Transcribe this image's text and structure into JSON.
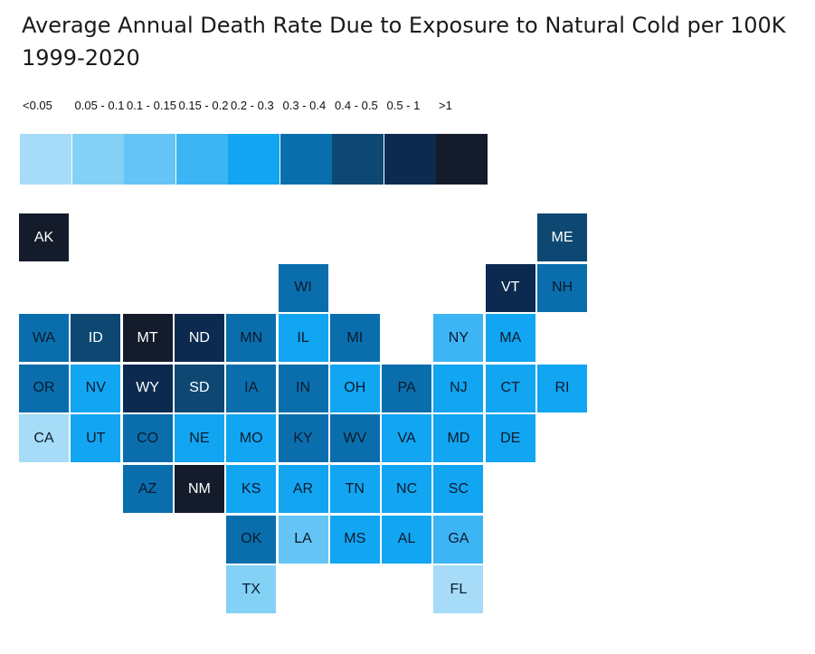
{
  "title": {
    "line1": "Average Annual Death Rate Due to Exposure to Natural Cold per 100K",
    "line2": "1999-2020"
  },
  "chart_data": {
    "type": "heatmap",
    "legend": [
      {
        "label": "<0.05",
        "color": "#a6dcf7"
      },
      {
        "label": "0.05 - 0.1",
        "color": "#84d1f6"
      },
      {
        "label": "0.1 - 0.15",
        "color": "#64c4f5"
      },
      {
        "label": "0.15 - 0.2",
        "color": "#3db5f5"
      },
      {
        "label": "0.2 - 0.3",
        "color": "#12a5f2"
      },
      {
        "label": "0.3 - 0.4",
        "color": "#0a6ead"
      },
      {
        "label": "0.4 - 0.5",
        "color": "#0e4872"
      },
      {
        "label": "0.5 - 1",
        "color": "#0c2a4f"
      },
      {
        "label": ">1",
        "color": "#141c2b"
      }
    ],
    "states": [
      {
        "abbr": "AK",
        "row": 0,
        "col": 0,
        "bin": 8
      },
      {
        "abbr": "ME",
        "row": 0,
        "col": 10,
        "bin": 6
      },
      {
        "abbr": "WI",
        "row": 1,
        "col": 5,
        "bin": 5
      },
      {
        "abbr": "VT",
        "row": 1,
        "col": 9,
        "bin": 7
      },
      {
        "abbr": "NH",
        "row": 1,
        "col": 10,
        "bin": 5
      },
      {
        "abbr": "WA",
        "row": 2,
        "col": 0,
        "bin": 5
      },
      {
        "abbr": "ID",
        "row": 2,
        "col": 1,
        "bin": 6
      },
      {
        "abbr": "MT",
        "row": 2,
        "col": 2,
        "bin": 8
      },
      {
        "abbr": "ND",
        "row": 2,
        "col": 3,
        "bin": 7
      },
      {
        "abbr": "MN",
        "row": 2,
        "col": 4,
        "bin": 5
      },
      {
        "abbr": "IL",
        "row": 2,
        "col": 5,
        "bin": 4
      },
      {
        "abbr": "MI",
        "row": 2,
        "col": 6,
        "bin": 5
      },
      {
        "abbr": "NY",
        "row": 2,
        "col": 8,
        "bin": 3
      },
      {
        "abbr": "MA",
        "row": 2,
        "col": 9,
        "bin": 4
      },
      {
        "abbr": "OR",
        "row": 3,
        "col": 0,
        "bin": 5
      },
      {
        "abbr": "NV",
        "row": 3,
        "col": 1,
        "bin": 4
      },
      {
        "abbr": "WY",
        "row": 3,
        "col": 2,
        "bin": 7
      },
      {
        "abbr": "SD",
        "row": 3,
        "col": 3,
        "bin": 6
      },
      {
        "abbr": "IA",
        "row": 3,
        "col": 4,
        "bin": 5
      },
      {
        "abbr": "IN",
        "row": 3,
        "col": 5,
        "bin": 5
      },
      {
        "abbr": "OH",
        "row": 3,
        "col": 6,
        "bin": 4
      },
      {
        "abbr": "PA",
        "row": 3,
        "col": 7,
        "bin": 5
      },
      {
        "abbr": "NJ",
        "row": 3,
        "col": 8,
        "bin": 4
      },
      {
        "abbr": "CT",
        "row": 3,
        "col": 9,
        "bin": 4
      },
      {
        "abbr": "RI",
        "row": 3,
        "col": 10,
        "bin": 4
      },
      {
        "abbr": "CA",
        "row": 4,
        "col": 0,
        "bin": 0
      },
      {
        "abbr": "UT",
        "row": 4,
        "col": 1,
        "bin": 4
      },
      {
        "abbr": "CO",
        "row": 4,
        "col": 2,
        "bin": 5
      },
      {
        "abbr": "NE",
        "row": 4,
        "col": 3,
        "bin": 4
      },
      {
        "abbr": "MO",
        "row": 4,
        "col": 4,
        "bin": 4
      },
      {
        "abbr": "KY",
        "row": 4,
        "col": 5,
        "bin": 5
      },
      {
        "abbr": "WV",
        "row": 4,
        "col": 6,
        "bin": 5
      },
      {
        "abbr": "VA",
        "row": 4,
        "col": 7,
        "bin": 4
      },
      {
        "abbr": "MD",
        "row": 4,
        "col": 8,
        "bin": 4
      },
      {
        "abbr": "DE",
        "row": 4,
        "col": 9,
        "bin": 4
      },
      {
        "abbr": "AZ",
        "row": 5,
        "col": 2,
        "bin": 5
      },
      {
        "abbr": "NM",
        "row": 5,
        "col": 3,
        "bin": 8
      },
      {
        "abbr": "KS",
        "row": 5,
        "col": 4,
        "bin": 4
      },
      {
        "abbr": "AR",
        "row": 5,
        "col": 5,
        "bin": 4
      },
      {
        "abbr": "TN",
        "row": 5,
        "col": 6,
        "bin": 4
      },
      {
        "abbr": "NC",
        "row": 5,
        "col": 7,
        "bin": 4
      },
      {
        "abbr": "SC",
        "row": 5,
        "col": 8,
        "bin": 4
      },
      {
        "abbr": "OK",
        "row": 6,
        "col": 4,
        "bin": 5
      },
      {
        "abbr": "LA",
        "row": 6,
        "col": 5,
        "bin": 2
      },
      {
        "abbr": "MS",
        "row": 6,
        "col": 6,
        "bin": 4
      },
      {
        "abbr": "AL",
        "row": 6,
        "col": 7,
        "bin": 4
      },
      {
        "abbr": "GA",
        "row": 6,
        "col": 8,
        "bin": 3
      },
      {
        "abbr": "TX",
        "row": 7,
        "col": 4,
        "bin": 1
      },
      {
        "abbr": "FL",
        "row": 7,
        "col": 8,
        "bin": 0
      }
    ]
  }
}
